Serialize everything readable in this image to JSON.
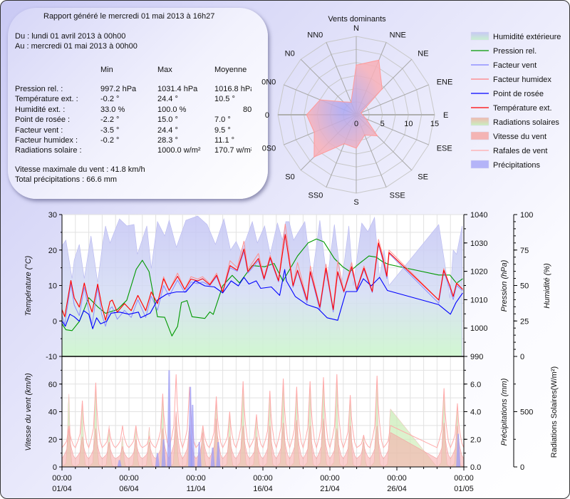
{
  "report": {
    "title": "Rapport généré le mercredi 01 mai 2013 à 16h27",
    "from": "Du : lundi 01 avril 2013 à 00h00",
    "to": "Au : mercredi 01 mai 2013 à 00h00",
    "headers": {
      "min": "Min",
      "max": "Max",
      "avg": "Moyenne"
    },
    "rows": [
      {
        "label": "Pression rel. :",
        "min": "997.2 hPa",
        "max": "1031.4 hPa",
        "avg": "1016.8 hPa"
      },
      {
        "label": "Température ext. :",
        "min": "-0.2 °",
        "max": "24.4 °",
        "avg": "10.5 °"
      },
      {
        "label": "Humidité ext. :",
        "min": "33.0 %",
        "max": "100.0 %",
        "avg": "80"
      },
      {
        "label": "Point de rosée :",
        "min": "-2.2 °",
        "max": "15.0 °",
        "avg": "7.0 °"
      },
      {
        "label": "Facteur vent :",
        "min": "-3.5 °",
        "max": "24.4 °",
        "avg": "9.5 °"
      },
      {
        "label": "Facteur humidex :",
        "min": "-0.2 °",
        "max": "28.3 °",
        "avg": "11.1 °"
      },
      {
        "label": "Radiations solaire :",
        "min": "",
        "max": "1000.0 w/m²",
        "avg": "170.7 w/m²"
      }
    ],
    "max_wind": "Vitesse maximale du vent : 41.8 km/h",
    "total_precip": "Total précipitations : 66.6 mm"
  },
  "legend": [
    {
      "label": "Humidité extérieure",
      "kind": "area",
      "color": "#c8c8f5",
      "color2": "#c8f0d0"
    },
    {
      "label": "Pression rel.",
      "kind": "line",
      "color": "#009900"
    },
    {
      "label": "Facteur vent",
      "kind": "line",
      "color": "#8080ff"
    },
    {
      "label": "Facteur humidex",
      "kind": "line",
      "color": "#ff8080"
    },
    {
      "label": "Point de rosée",
      "kind": "line",
      "color": "#0000ff"
    },
    {
      "label": "Température ext.",
      "kind": "line",
      "color": "#ff0000"
    },
    {
      "label": "Radiations solaires",
      "kind": "area",
      "color": "#f0b8b0",
      "color2": "#c8f0c0"
    },
    {
      "label": "Vitesse du vent",
      "kind": "area",
      "color": "#f4b4b4",
      "color2": "#f4b4b4"
    },
    {
      "label": "Rafales de vent",
      "kind": "line",
      "color": "#ffaaaa"
    },
    {
      "label": "Précipitations",
      "kind": "area",
      "color": "#b4b4f8",
      "color2": "#b4b4f8"
    }
  ],
  "chart_data": [
    {
      "type": "radar",
      "title": "Vents dominants",
      "directions": [
        "N",
        "NNE",
        "NE",
        "ENE",
        "E",
        "ESE",
        "SE",
        "SSE",
        "S",
        "SS0",
        "S0",
        "0S0",
        "0",
        "0N0",
        "N0",
        "NN0"
      ],
      "values": [
        9.5,
        11.3,
        7.0,
        1.0,
        1.2,
        2.0,
        5.7,
        4.2,
        6.4,
        6.0,
        11.4,
        8.7,
        9.5,
        7.5,
        3.5,
        2.6
      ],
      "rlim": [
        0,
        15
      ],
      "r_tick_labels": [
        "0",
        "5",
        "10",
        "15"
      ],
      "colors": {
        "fill_center": "#b4b4f8",
        "fill_edge": "#f6b0b8",
        "stroke": "#ff9a9a"
      }
    },
    {
      "type": "line",
      "panel": "top",
      "x_tick_labels": [
        {
          "time": "00:00",
          "date": "01/04"
        },
        {
          "time": "00:00",
          "date": "06/04"
        },
        {
          "time": "00:00",
          "date": "11/04"
        },
        {
          "time": "00:00",
          "date": "16/04"
        },
        {
          "time": "00:00",
          "date": "21/04"
        },
        {
          "time": "00:00",
          "date": "26/04"
        },
        {
          "time": "00:00",
          "date": "01/05"
        }
      ],
      "xlim": [
        "01/04 00:00",
        "01/05 00:00"
      ],
      "ylabel_left": "Température (°C)",
      "ylim_left": [
        -10,
        30
      ],
      "yticks_left": [
        "30",
        "20",
        "10",
        "0",
        "-10"
      ],
      "ylabel_right1": "Pression (hPa)",
      "ylim_right1": [
        990,
        1040
      ],
      "yticks_right1": [
        "1040",
        "1030",
        "1020",
        "1010",
        "1000",
        "990"
      ],
      "ylabel_right2": "Humidité (%)",
      "ylim_right2": [
        0,
        100
      ],
      "yticks_right2": [
        "100",
        "75",
        "50",
        "25",
        "0"
      ],
      "grid": true,
      "temperature_block": {
        "t": [
          "01/04 00:00",
          "01/04 05:00",
          "01/04 16:00",
          "01/04 22:00",
          "02/04 07:00",
          "02/04 16:00",
          "03/04 00:00",
          "03/04 06:00",
          "03/04 16:00",
          "03/04 23:00",
          "04/04 06:00",
          "04/04 14:00",
          "04/04 18:00",
          "05/04 03:00",
          "05/04 16:00",
          "06/04 04:00",
          "06/04 16:00",
          "07/04 06:00",
          "07/04 16:00",
          "08/04 03:00",
          "08/04 14:00",
          "09/04 00:00",
          "09/04 15:00",
          "10/04 04:00",
          "10/04 15:00",
          "11/04 03:00",
          "11/04 12:00",
          "12/04 01:00",
          "12/04 13:00",
          "13/04 00:00",
          "13/04 13:00",
          "14/04 02:00",
          "14/04 14:00",
          "14/04 21:00",
          "15/04 16:00",
          "16/04 02:00",
          "16/04 13:00",
          "17/04 04:00",
          "17/04 16:00",
          "18/04 06:00",
          "18/04 14:00",
          "19/04 07:00",
          "19/04 13:00",
          "20/04 06:00",
          "20/04 17:00",
          "21/04 06:00",
          "21/04 14:00",
          "22/04 01:00",
          "22/04 15:00",
          "23/04 00:00",
          "23/04 13:00",
          "24/04 04:00",
          "24/04 15:00",
          "24/04 23:00",
          "25/04 06:00",
          "25/04 10:00",
          "29/04 03:00",
          "29/04 12:00",
          "29/04 23:00",
          "30/04 05:00",
          "30/04 11:00",
          "30/04 22:00"
        ],
        "Température ext.": [
          3.2,
          1.2,
          11.4,
          6.5,
          3.9,
          10.7,
          5.2,
          2.5,
          10.4,
          4.5,
          0.2,
          5.5,
          5.9,
          2.5,
          4.9,
          2.9,
          7.2,
          2.9,
          8.2,
          4.9,
          11.9,
          8.6,
          12.6,
          8.9,
          11.8,
          11.3,
          11.9,
          10.2,
          12.9,
          8.2,
          15.6,
          14.3,
          20.3,
          13.9,
          17.6,
          11.9,
          17.9,
          11.3,
          24.4,
          9.9,
          14.3,
          5.9,
          13.9,
          3.9,
          14.9,
          3.2,
          13.9,
          8.3,
          15.3,
          8.9,
          14.9,
          8.3,
          22.0,
          17.6,
          12.6,
          19.3,
          5.9,
          14.3,
          9.9,
          6.9,
          10.6,
          8.9
        ],
        "Facteur vent": [
          1.5,
          -1.0,
          10.5,
          4.5,
          1.5,
          9.5,
          3.0,
          -1.0,
          9.5,
          2.0,
          -1.5,
          3.5,
          4.0,
          0.5,
          3.0,
          1.0,
          6.0,
          1.0,
          7.0,
          3.0,
          10.0,
          7.0,
          11.5,
          8.0,
          11.0,
          10.5,
          11.0,
          10.0,
          12.5,
          8.0,
          15.0,
          14.0,
          19.5,
          13.5,
          17.0,
          11.5,
          17.5,
          11.0,
          24.4,
          9.5,
          14.0,
          5.0,
          13.5,
          3.0,
          14.5,
          2.5,
          13.5,
          8.0,
          15.0,
          8.5,
          14.5,
          8.0,
          21.5,
          17.0,
          12.0,
          19.0,
          5.0,
          14.0,
          9.0,
          6.0,
          10.0,
          8.5
        ],
        "Facteur humidex": [
          3.2,
          1.2,
          11.4,
          6.5,
          3.9,
          10.7,
          5.2,
          2.5,
          10.4,
          4.5,
          0.2,
          5.5,
          5.9,
          2.5,
          4.9,
          2.9,
          7.2,
          2.9,
          8.2,
          4.9,
          12.5,
          8.6,
          13.5,
          8.9,
          12.5,
          11.8,
          12.5,
          10.5,
          13.5,
          8.2,
          17.0,
          15.0,
          22.5,
          14.5,
          19.0,
          12.3,
          18.5,
          11.5,
          27.3,
          10.0,
          16.5,
          5.9,
          15.5,
          3.9,
          16.0,
          3.2,
          17.0,
          8.3,
          16.5,
          8.9,
          15.5,
          8.3,
          23.0,
          18.5,
          13.0,
          20.0,
          5.9,
          14.8,
          10.0,
          6.9,
          10.8,
          8.9
        ]
      },
      "Point de rosée": {
        "t": [
          "01/04 00:00",
          "01/04 06:00",
          "01/04 14:00",
          "01/04 22:00",
          "02/04 07:00",
          "02/04 15:00",
          "03/04 00:00",
          "03/04 07:00",
          "03/04 14:00",
          "03/04 21:00",
          "04/04 08:00",
          "04/04 16:00",
          "05/04 07:00",
          "06/04 00:00",
          "06/04 17:00",
          "06/04 21:00",
          "07/04 14:00",
          "08/04 03:00",
          "08/04 20:00",
          "09/04 13:00",
          "10/04 06:00",
          "10/04 15:00",
          "10/04 23:00",
          "11/04 16:00",
          "12/04 09:00",
          "13/04 00:00",
          "13/04 15:00",
          "14/04 04:00",
          "14/04 14:00",
          "14/04 23:00",
          "15/04 12:00",
          "15/04 20:00",
          "16/04 15:00",
          "17/04 06:00",
          "17/04 15:00",
          "17/04 18:00",
          "18/04 10:00",
          "19/04 07:00",
          "20/04 02:00",
          "20/04 19:00",
          "21/04 14:00",
          "22/04 05:00",
          "23/04 00:00",
          "23/04 12:00",
          "24/04 02:00",
          "24/04 17:00",
          "25/04 07:00",
          "29/04 03:00",
          "30/04 00:00",
          "30/04 10:00",
          "30/04 22:00"
        ],
        "v": [
          0.0,
          -1.5,
          1.9,
          1.2,
          -0.1,
          2.9,
          1.9,
          -2.2,
          0.9,
          -0.8,
          -0.1,
          2.2,
          2.5,
          1.9,
          2.5,
          0.9,
          2.2,
          5.9,
          7.6,
          8.2,
          8.2,
          9.9,
          11.3,
          9.9,
          9.6,
          7.9,
          11.3,
          9.9,
          12.3,
          10.4,
          11.3,
          9.2,
          9.6,
          7.2,
          14.5,
          11.3,
          6.9,
          4.6,
          3.6,
          0.9,
          0.2,
          8.3,
          8.3,
          11.9,
          9.9,
          12.3,
          8.6,
          4.6,
          1.9,
          5.2,
          7.9
        ]
      },
      "Pression rel.": {
        "t": [
          "01/04 00:00",
          "01/04 07:00",
          "01/04 18:00",
          "02/04 07:00",
          "03/04 00:00",
          "03/04 17:00",
          "04/04 06:00",
          "05/04 03:00",
          "05/04 20:00",
          "06/04 13:00",
          "07/04 00:00",
          "07/04 12:00",
          "08/04 03:00",
          "08/04 16:00",
          "09/04 05:00",
          "09/04 15:00",
          "09/04 22:00",
          "10/04 08:00",
          "10/04 17:00",
          "11/04 16:00",
          "12/04 01:00",
          "12/04 07:00",
          "13/04 00:00",
          "13/04 17:00",
          "14/04 06:00",
          "15/04 05:00",
          "16/04 03:00",
          "16/04 20:00",
          "17/04 12:00",
          "17/04 17:00",
          "18/04 14:00",
          "19/04 09:00",
          "20/04 00:00",
          "20/04 13:00",
          "21/04 08:00",
          "21/04 23:00",
          "22/04 12:00",
          "23/04 00:00",
          "23/04 22:00",
          "24/04 11:00",
          "24/04 23:00",
          "25/04 10:00",
          "29/04 03:00",
          "29/04 23:00",
          "30/04 11:00",
          "30/04 22:00"
        ],
        "v": [
          1001.5,
          999.4,
          999.1,
          1002.3,
          1010.7,
          1007.3,
          1005.2,
          1006.5,
          1009.8,
          1020.7,
          1023.9,
          1019.9,
          1004.0,
          1003.8,
          997.2,
          1000.6,
          1009.0,
          1009.7,
          1004.0,
          1003.4,
          1005.7,
          1004.8,
          1014.9,
          1018.6,
          1015.9,
          1022.0,
          1021.6,
          1022.8,
          1016.5,
          1018.3,
          1025.4,
          1030.0,
          1031.4,
          1030.4,
          1024.5,
          1021.6,
          1019.9,
          1022.0,
          1025.4,
          1025.0,
          1023.3,
          1022.4,
          1018.7,
          1018.7,
          1015.8,
          1017.4
        ]
      },
      "Humidité extérieure": {
        "t": [
          "01/04 00:00",
          "01/04 07:00",
          "01/04 18:00",
          "01/04 22:00",
          "02/04 07:00",
          "02/04 16:00",
          "03/04 04:00",
          "03/04 16:00",
          "04/04 01:00",
          "04/04 06:00",
          "04/04 14:00",
          "05/04 07:00",
          "05/04 20:00",
          "06/04 09:00",
          "06/04 15:00",
          "07/04 08:00",
          "07/04 16:00",
          "08/04 03:00",
          "08/04 16:00",
          "09/04 00:00",
          "09/04 13:00",
          "10/04 06:00",
          "11/04 03:00",
          "11/04 20:00",
          "12/04 11:00",
          "13/04 02:00",
          "13/04 14:00",
          "14/04 00:00",
          "14/04 09:00",
          "15/04 05:00",
          "15/04 14:00",
          "16/04 03:00",
          "16/04 13:00",
          "17/04 02:00",
          "17/04 11:00",
          "17/04 17:00",
          "17/04 23:00",
          "18/04 07:00",
          "19/04 03:00",
          "19/04 16:00",
          "20/04 06:00",
          "20/04 19:00",
          "21/04 08:00",
          "21/04 21:00",
          "22/04 10:00",
          "22/04 18:00",
          "23/04 09:00",
          "23/04 20:00",
          "24/04 08:00",
          "24/04 17:00",
          "25/04 01:00",
          "25/04 10:00",
          "29/04 03:00",
          "29/04 14:00",
          "29/04 23:00",
          "30/04 05:00",
          "30/04 11:00",
          "30/04 21:00"
        ],
        "v": [
          78,
          82,
          55,
          68,
          79,
          55,
          85,
          52,
          80,
          92,
          80,
          97,
          92,
          93,
          72,
          92,
          62,
          95,
          85,
          96,
          77,
          96,
          99,
          93,
          79,
          97,
          75,
          81,
          73,
          95,
          80,
          92,
          72,
          94,
          82,
          95,
          95,
          82,
          95,
          55,
          96,
          53,
          93,
          51,
          92,
          50,
          94,
          88,
          98,
          55,
          75,
          50,
          93,
          65,
          41,
          75,
          72,
          92
        ]
      }
    },
    {
      "type": "area",
      "panel": "bottom",
      "ylabel_left": "Vitesse du vent (km/h)",
      "ylim_left": [
        0,
        80
      ],
      "yticks_left": [
        "60",
        "40",
        "20",
        "0"
      ],
      "ylabel_right1": "Précipitations (mm)",
      "ylim_right1": [
        0,
        8
      ],
      "yticks_right1": [
        "6.0",
        "4.0",
        "2.0",
        "0.0"
      ],
      "ylabel_right2": "Radiations Solaires(W/m²)",
      "ylim_right2": [
        0,
        1000
      ],
      "yticks_right2": [
        "500",
        "0"
      ],
      "grid": true,
      "days": [
        "01/04",
        "02/04",
        "03/04",
        "04/04",
        "05/04",
        "06/04",
        "07/04",
        "08/04",
        "09/04",
        "10/04",
        "11/04",
        "12/04",
        "13/04",
        "14/04",
        "15/04",
        "16/04",
        "17/04",
        "18/04",
        "19/04",
        "20/04",
        "21/04",
        "22/04",
        "23/04",
        "24/04",
        "25/04",
        "26/04",
        "27/04",
        "28/04",
        "29/04",
        "30/04"
      ],
      "Radiations solaires (daily peak)": [
        660,
        600,
        760,
        375,
        275,
        375,
        360,
        660,
        500,
        380,
        375,
        590,
        500,
        775,
        475,
        690,
        775,
        725,
        775,
        810,
        840,
        650,
        290,
        825,
        525,
        null,
        null,
        null,
        710,
        575
      ],
      "Vitesse du vent (daily peak)": [
        28,
        22,
        28,
        18,
        15,
        20,
        18,
        28,
        40,
        30,
        25,
        35,
        22,
        30,
        22,
        30,
        32,
        34,
        30,
        35,
        28,
        30,
        18,
        30,
        25,
        null,
        null,
        null,
        32,
        30
      ],
      "Rafales de vent (daily peak)": [
        30,
        48,
        61,
        28,
        30,
        30,
        22,
        53,
        67,
        58,
        30,
        51,
        40,
        62,
        38,
        55,
        64,
        58,
        62,
        65,
        67,
        52,
        23,
        66,
        30,
        null,
        null,
        null,
        57,
        46
      ],
      "Précipitations": [
        {
          "t": "05/04 07:00",
          "mm": 0.5
        },
        {
          "t": "08/04 03:00",
          "mm": 1.0
        },
        {
          "t": "08/04 14:00",
          "mm": 2.0
        },
        {
          "t": "09/04 00:00",
          "mm": 7.0
        },
        {
          "t": "10/04 14:00",
          "mm": 5.8
        },
        {
          "t": "10/04 18:00",
          "mm": 4.5
        },
        {
          "t": "11/04 06:00",
          "mm": 1.8
        },
        {
          "t": "12/04 06:00",
          "mm": 1.4
        },
        {
          "t": "12/04 16:00",
          "mm": 1.8
        },
        {
          "t": "30/04 14:00",
          "mm": 2.4
        }
      ]
    }
  ]
}
